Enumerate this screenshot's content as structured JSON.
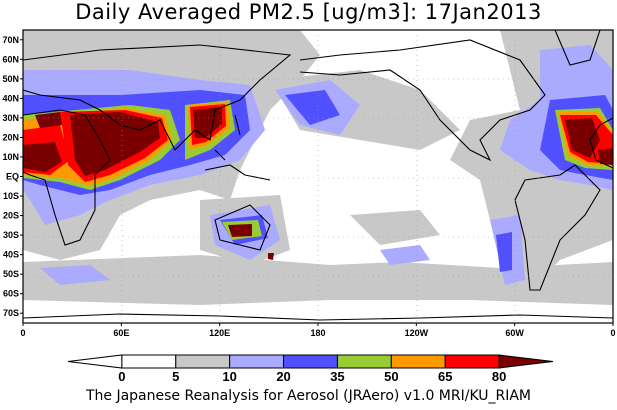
{
  "chart_data": {
    "type": "heatmap",
    "title": "Daily Averaged PM2.5 [ug/m3]: 17Jan2013",
    "variable": "PM2.5",
    "units": "ug/m3",
    "date": "17Jan2013",
    "lon_range": [
      0,
      360
    ],
    "lat_range": [
      -75,
      75
    ],
    "x_tick_labels": [
      "0",
      "60E",
      "120E",
      "180",
      "120W",
      "60W",
      "0"
    ],
    "y_tick_labels": [
      "70N",
      "60N",
      "50N",
      "40N",
      "30N",
      "20N",
      "10N",
      "EQ",
      "10S",
      "20S",
      "30S",
      "40S",
      "50S",
      "60S",
      "70S"
    ],
    "colorbar": {
      "levels": [
        "0",
        "5",
        "10",
        "20",
        "35",
        "50",
        "65",
        "80"
      ],
      "colors": [
        "#ffffff",
        "#ffffff",
        "#c8c8c8",
        "#aaaaff",
        "#5050ff",
        "#99cc33",
        "#ff9900",
        "#ff0000",
        "#7a0000"
      ]
    },
    "footer": "The Japanese Reanalysis for Aerosol (JRAero) v1.0 MRI/KU_RIAM"
  }
}
